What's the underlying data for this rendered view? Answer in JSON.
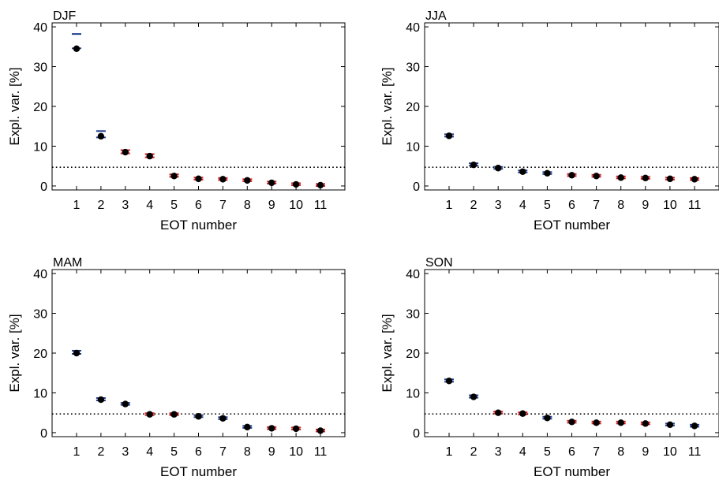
{
  "colors": {
    "blue": "#1f3d8c",
    "red": "#d7191c",
    "dot": "#000000",
    "frame": "#000000"
  },
  "chart_data": [
    {
      "type": "scatter",
      "title": "DJF",
      "xlabel": "EOT number",
      "ylabel": "Expl. var. [%]",
      "ylim": [
        -1,
        41
      ],
      "yticks": [
        0,
        10,
        20,
        30,
        40
      ],
      "categories": [
        "1",
        "2",
        "3",
        "4",
        "5",
        "6",
        "7",
        "8",
        "9",
        "10",
        "11"
      ],
      "threshold": 4.7,
      "values": [
        34.5,
        12.5,
        8.5,
        7.5,
        2.5,
        1.8,
        1.7,
        1.4,
        0.8,
        0.4,
        0.2
      ],
      "upper": [
        38.2,
        13.8,
        9.0,
        8.0,
        2.9,
        2.1,
        2.0,
        1.7,
        1.1,
        0.7,
        0.5
      ],
      "lower": [
        34.6,
        12.2,
        8.2,
        7.2,
        2.3,
        1.6,
        1.5,
        1.2,
        0.6,
        0.2,
        0.0
      ],
      "colors": [
        "blue",
        "blue",
        "red",
        "red",
        "red",
        "red",
        "red",
        "red",
        "red",
        "red",
        "red"
      ]
    },
    {
      "type": "scatter",
      "title": "JJA",
      "xlabel": "EOT number",
      "ylabel": "Expl. var. [%]",
      "ylim": [
        -1,
        41
      ],
      "yticks": [
        0,
        10,
        20,
        30,
        40
      ],
      "categories": [
        "1",
        "2",
        "3",
        "4",
        "5",
        "6",
        "7",
        "8",
        "9",
        "10",
        "11"
      ],
      "threshold": 4.7,
      "values": [
        12.6,
        5.3,
        4.5,
        3.6,
        3.2,
        2.7,
        2.5,
        2.1,
        2.0,
        1.8,
        1.7
      ],
      "upper": [
        13.0,
        5.7,
        4.8,
        3.9,
        3.5,
        3.0,
        2.8,
        2.4,
        2.3,
        2.1,
        2.0
      ],
      "lower": [
        12.4,
        5.1,
        4.3,
        3.4,
        3.0,
        2.5,
        2.3,
        1.9,
        1.8,
        1.6,
        1.5
      ],
      "colors": [
        "blue",
        "blue",
        "blue",
        "blue",
        "blue",
        "red",
        "red",
        "red",
        "red",
        "red",
        "red"
      ]
    },
    {
      "type": "scatter",
      "title": "MAM",
      "xlabel": "EOT number",
      "ylabel": "Expl. var. [%]",
      "ylim": [
        -1,
        41
      ],
      "yticks": [
        0,
        10,
        20,
        30,
        40
      ],
      "categories": [
        "1",
        "2",
        "3",
        "4",
        "5",
        "6",
        "7",
        "8",
        "9",
        "10",
        "11"
      ],
      "threshold": 4.7,
      "values": [
        20.0,
        8.3,
        7.2,
        4.6,
        4.6,
        4.1,
        3.6,
        1.4,
        1.1,
        1.0,
        0.5
      ],
      "upper": [
        20.6,
        8.7,
        7.5,
        4.9,
        4.9,
        4.4,
        3.9,
        1.7,
        1.4,
        1.3,
        0.8
      ],
      "lower": [
        19.8,
        8.1,
        7.0,
        4.4,
        4.4,
        3.9,
        3.4,
        1.2,
        0.9,
        0.8,
        0.3
      ],
      "colors": [
        "blue",
        "blue",
        "blue",
        "red",
        "red",
        "blue",
        "blue",
        "blue",
        "red",
        "red",
        "red"
      ]
    },
    {
      "type": "scatter",
      "title": "SON",
      "xlabel": "EOT number",
      "ylabel": "Expl. var. [%]",
      "ylim": [
        -1,
        41
      ],
      "yticks": [
        0,
        10,
        20,
        30,
        40
      ],
      "categories": [
        "1",
        "2",
        "3",
        "4",
        "5",
        "6",
        "7",
        "8",
        "9",
        "10",
        "11"
      ],
      "threshold": 4.7,
      "values": [
        13.0,
        9.0,
        5.0,
        4.8,
        3.7,
        2.7,
        2.5,
        2.5,
        2.3,
        2.0,
        1.7
      ],
      "upper": [
        13.4,
        9.4,
        5.3,
        5.1,
        4.0,
        3.0,
        2.8,
        2.8,
        2.6,
        2.3,
        2.0
      ],
      "lower": [
        12.8,
        8.8,
        4.8,
        4.6,
        3.5,
        2.5,
        2.3,
        2.3,
        2.1,
        1.8,
        1.5
      ],
      "colors": [
        "blue",
        "blue",
        "red",
        "red",
        "blue",
        "red",
        "red",
        "red",
        "red",
        "blue",
        "blue"
      ]
    }
  ]
}
